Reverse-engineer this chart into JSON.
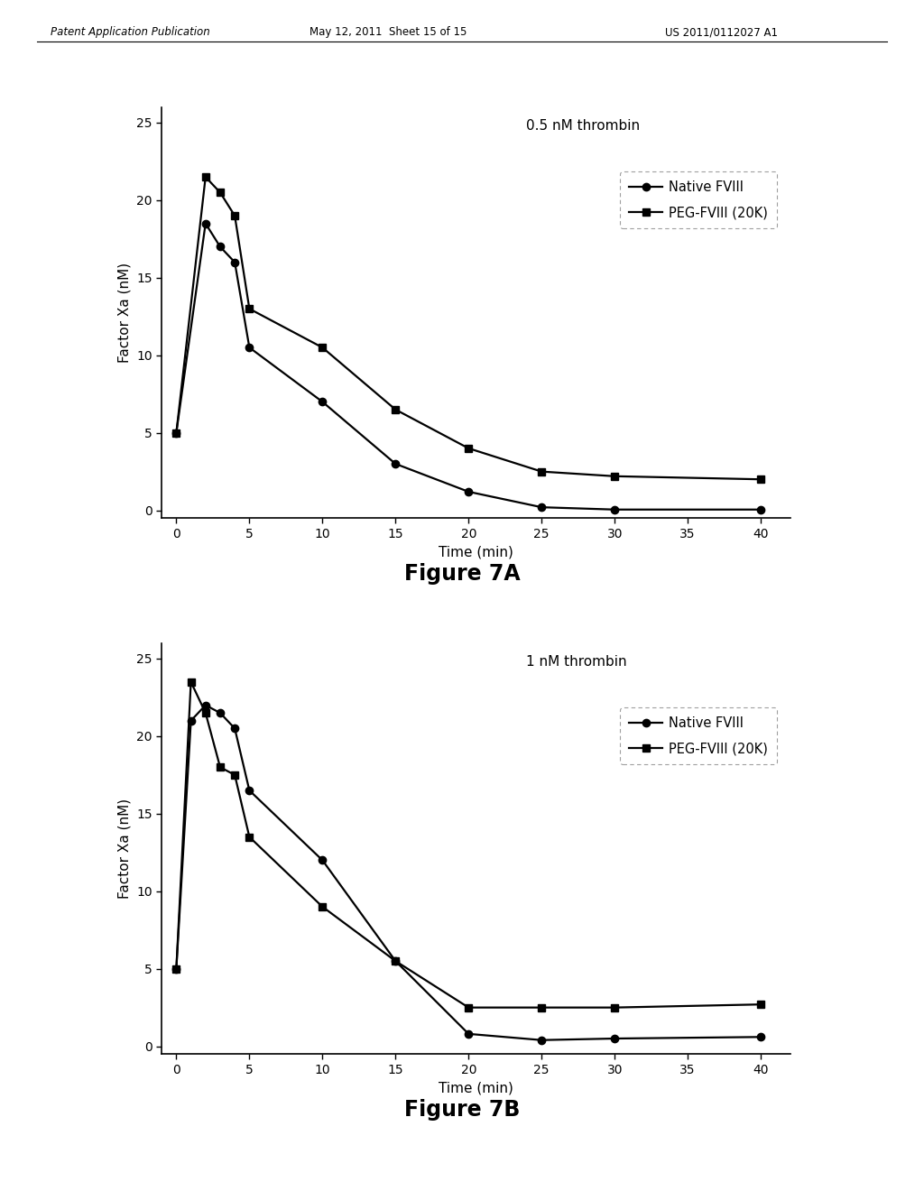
{
  "header_left": "Patent Application Publication",
  "header_mid": "May 12, 2011  Sheet 15 of 15",
  "header_right": "US 2011/0112027 A1",
  "fig7a": {
    "title": "0.5 nM thrombin",
    "xlabel": "Time (min)",
    "ylabel": "Factor Xa (nM)",
    "xlim": [
      -1,
      42
    ],
    "ylim": [
      -0.5,
      26
    ],
    "xticks": [
      0,
      5,
      10,
      15,
      20,
      25,
      30,
      35,
      40
    ],
    "yticks": [
      0,
      5,
      10,
      15,
      20,
      25
    ],
    "native_x": [
      0,
      2,
      3,
      4,
      5,
      10,
      15,
      20,
      25,
      30,
      40
    ],
    "native_y": [
      5.0,
      18.5,
      17.0,
      16.0,
      10.5,
      7.0,
      3.0,
      1.2,
      0.2,
      0.05,
      0.05
    ],
    "peg_x": [
      0,
      2,
      3,
      4,
      5,
      10,
      15,
      20,
      25,
      30,
      40
    ],
    "peg_y": [
      5.0,
      21.5,
      20.5,
      19.0,
      13.0,
      10.5,
      6.5,
      4.0,
      2.5,
      2.2,
      2.0
    ]
  },
  "fig7b": {
    "title": "1 nM thrombin",
    "xlabel": "Time (min)",
    "ylabel": "Factor Xa (nM)",
    "xlim": [
      -1,
      42
    ],
    "ylim": [
      -0.5,
      26
    ],
    "xticks": [
      0,
      5,
      10,
      15,
      20,
      25,
      30,
      35,
      40
    ],
    "yticks": [
      0,
      5,
      10,
      15,
      20,
      25
    ],
    "native_x": [
      0,
      1,
      2,
      3,
      4,
      5,
      10,
      15,
      20,
      25,
      30,
      40
    ],
    "native_y": [
      5.0,
      21.0,
      22.0,
      21.5,
      20.5,
      16.5,
      12.0,
      5.5,
      0.8,
      0.4,
      0.5,
      0.6
    ],
    "peg_x": [
      0,
      1,
      2,
      3,
      4,
      5,
      10,
      15,
      20,
      25,
      30,
      40
    ],
    "peg_y": [
      5.0,
      23.5,
      21.5,
      18.0,
      17.5,
      13.5,
      9.0,
      5.5,
      2.5,
      2.5,
      2.5,
      2.7
    ]
  },
  "legend_native": "Native FVIII",
  "legend_peg": "PEG-FVIII (20K)",
  "fig7a_label": "Figure 7A",
  "fig7b_label": "Figure 7B",
  "line_color": "#000000",
  "native_marker": "o",
  "peg_marker": "s",
  "markersize": 6,
  "linewidth": 1.6,
  "background_color": "#ffffff"
}
